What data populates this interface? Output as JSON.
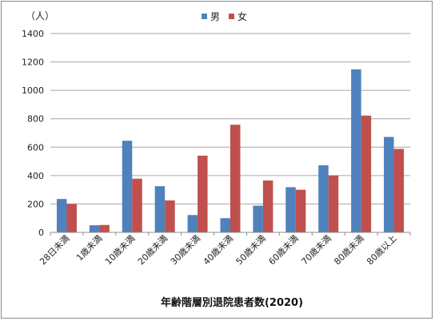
{
  "chart_data": {
    "type": "bar",
    "title": "",
    "unit_label": "（人）",
    "xlabel": "年齢階層別退院患者数(2020)",
    "ylabel": "",
    "ylim": [
      0,
      1400
    ],
    "yticks": [
      0,
      200,
      400,
      600,
      800,
      1000,
      1200,
      1400
    ],
    "grid": true,
    "legend_position": "top-center",
    "categories": [
      "28日未満",
      "1歳未満",
      "10歳未満",
      "20歳未満",
      "30歳未満",
      "40歳未満",
      "50歳未満",
      "60歳未満",
      "70歳未満",
      "80歳未満",
      "80歳以上"
    ],
    "series": [
      {
        "name": "男",
        "color": "#4f81bd",
        "values": [
          235,
          50,
          645,
          325,
          122,
          100,
          188,
          318,
          472,
          1148,
          672
        ]
      },
      {
        "name": "女",
        "color": "#c0504d",
        "values": [
          200,
          52,
          378,
          225,
          540,
          758,
          365,
          300,
          400,
          822,
          588
        ]
      }
    ]
  }
}
